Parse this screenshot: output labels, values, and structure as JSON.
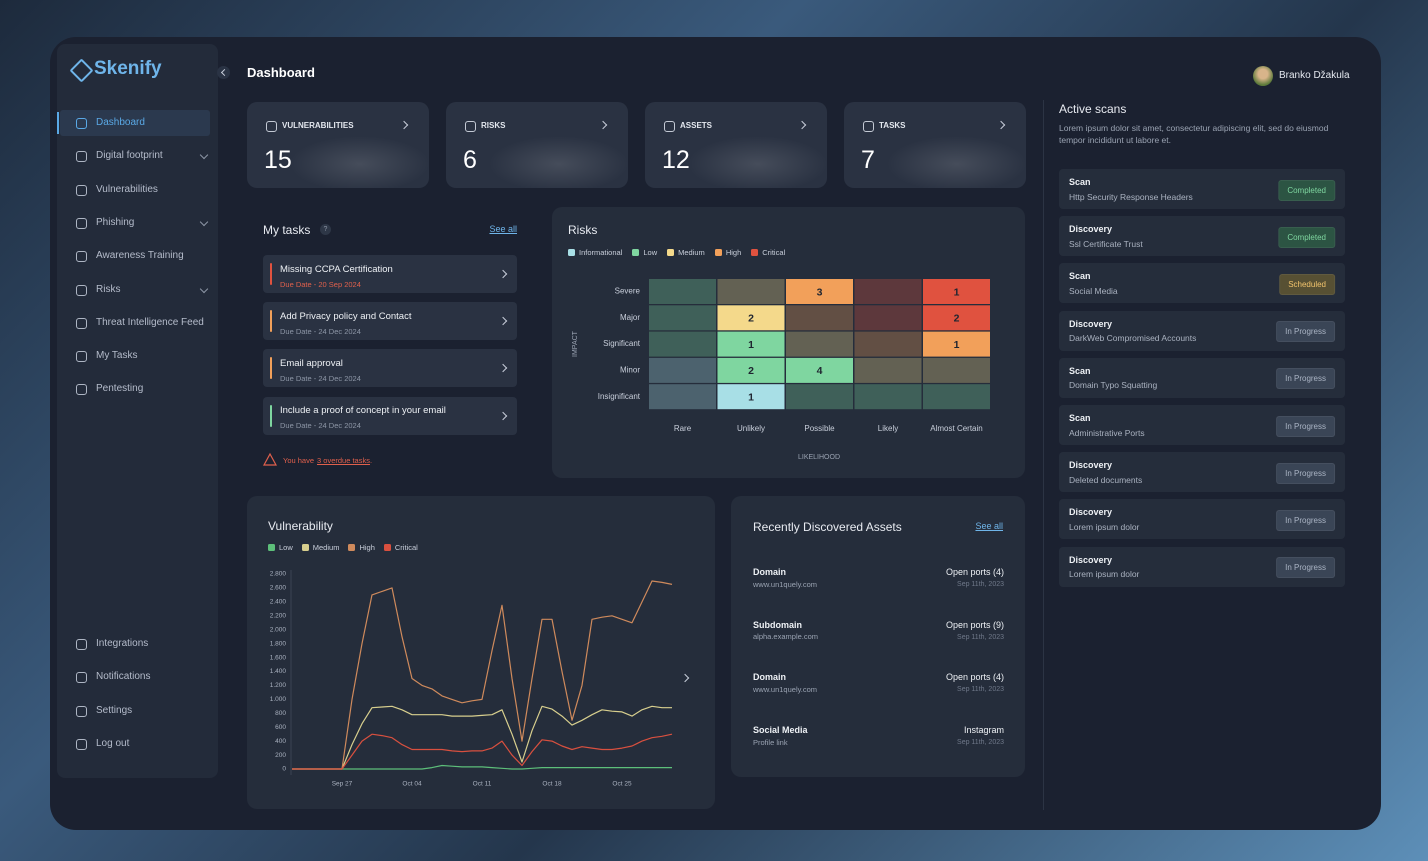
{
  "sidebar": {
    "logo": "Skenify",
    "nav": [
      "Dashboard",
      "Digital footprint",
      "Vulnerabilities",
      "Phishing",
      "Awareness Training",
      "Risks",
      "Threat Intelligence Feed",
      "My Tasks",
      "Pentesting"
    ],
    "bottom_nav": [
      "Integrations",
      "Notifications",
      "Settings",
      "Log out"
    ]
  },
  "header": {
    "title": "Dashboard",
    "user": "Branko Džakula"
  },
  "stats": [
    {
      "label": "VULNERABILITIES",
      "value": 15
    },
    {
      "label": "RISKS",
      "value": 6
    },
    {
      "label": "ASSETS",
      "value": 12
    },
    {
      "label": "TASKS",
      "value": 7
    }
  ],
  "tasks": {
    "title": "My tasks",
    "help": "?",
    "see_all": "See all",
    "items": [
      {
        "title": "Missing CCPA Certification",
        "due": "Due Date - 20 Sep 2024",
        "color": "#e0523f"
      },
      {
        "title": "Add Privacy policy and Contact",
        "due": "Due Date - 24 Dec 2024",
        "color": "#f2a05a"
      },
      {
        "title": "Email approval",
        "due": "Due Date - 24 Dec 2024",
        "color": "#f2a05a"
      },
      {
        "title": "Include a proof of concept in your email",
        "due": "Due Date - 24 Dec 2024",
        "color": "#7fd6a0"
      }
    ],
    "overdue_prefix": "You have",
    "overdue_link": "3 overdue tasks",
    "overdue_suffix": "."
  },
  "risks": {
    "title": "Risks",
    "levels": [
      {
        "name": "Informational",
        "color": "#a8dfe6"
      },
      {
        "name": "Low",
        "color": "#7fd6a0"
      },
      {
        "name": "Medium",
        "color": "#f4d98b"
      },
      {
        "name": "High",
        "color": "#f2a05a"
      },
      {
        "name": "Critical",
        "color": "#e0523f"
      }
    ],
    "rows": [
      "Severe",
      "Major",
      "Significant",
      "Minor",
      "Insignificant"
    ],
    "columns": [
      "Rare",
      "Unlikely",
      "Possible",
      "Likely",
      "Almost Certain"
    ],
    "y_label": "IMPACT",
    "x_label": "LIKELIHOOD",
    "cells": [
      [
        null,
        null,
        3,
        null,
        1
      ],
      [
        null,
        2,
        null,
        null,
        2
      ],
      [
        null,
        1,
        null,
        null,
        1
      ],
      [
        null,
        2,
        4,
        null,
        null
      ],
      [
        null,
        1,
        null,
        null,
        null
      ]
    ],
    "cell_levels": [
      [
        "Low",
        "Medium",
        "High",
        "Critical",
        "Critical"
      ],
      [
        "Low",
        "Medium",
        "High",
        "Critical",
        "Critical"
      ],
      [
        "Low",
        "Low",
        "Medium",
        "High",
        "High"
      ],
      [
        "Informational",
        "Low",
        "Low",
        "Medium",
        "Medium"
      ],
      [
        "Informational",
        "Informational",
        "Low",
        "Low",
        "Low"
      ]
    ]
  },
  "chart_data": {
    "type": "line",
    "title": "Vulnerability",
    "categories": [
      null,
      null,
      null,
      null,
      null,
      "Sep 27",
      null,
      null,
      null,
      null,
      null,
      null,
      "Oct 04",
      null,
      null,
      null,
      null,
      null,
      null,
      "Oct 11",
      null,
      null,
      null,
      null,
      null,
      null,
      "Oct 18",
      null,
      null,
      null,
      null,
      null,
      null,
      "Oct 25",
      null,
      null,
      null,
      null,
      null
    ],
    "series": [
      {
        "name": "Low",
        "color": "#5dbf7a",
        "values": [
          0,
          0,
          0,
          0,
          0,
          0,
          0,
          0,
          0,
          0,
          0,
          0,
          0,
          0,
          20,
          50,
          40,
          30,
          30,
          30,
          20,
          10,
          0,
          0,
          10,
          20,
          20,
          20,
          20,
          20,
          20,
          20,
          20,
          20,
          20,
          20,
          20,
          20,
          20
        ]
      },
      {
        "name": "Medium",
        "color": "#d8cf8e",
        "values": [
          0,
          0,
          0,
          0,
          0,
          0,
          350,
          650,
          880,
          890,
          900,
          850,
          780,
          780,
          780,
          780,
          760,
          760,
          760,
          770,
          780,
          850,
          500,
          100,
          550,
          900,
          860,
          760,
          630,
          700,
          780,
          850,
          830,
          820,
          760,
          850,
          900,
          880,
          880
        ]
      },
      {
        "name": "High",
        "color": "#cf8a5c",
        "values": [
          0,
          0,
          0,
          0,
          0,
          0,
          1000,
          1800,
          2500,
          2550,
          2600,
          1900,
          1300,
          1200,
          1150,
          1050,
          1000,
          950,
          980,
          1000,
          1700,
          2350,
          1300,
          400,
          1300,
          2150,
          2150,
          1400,
          700,
          1200,
          2150,
          2180,
          2200,
          2150,
          2100,
          2400,
          2700,
          2680,
          2650
        ]
      },
      {
        "name": "Critical",
        "color": "#d9503f",
        "values": [
          0,
          0,
          0,
          0,
          0,
          0,
          200,
          400,
          500,
          480,
          450,
          350,
          280,
          280,
          280,
          280,
          260,
          250,
          260,
          260,
          300,
          400,
          200,
          50,
          250,
          420,
          400,
          330,
          280,
          320,
          300,
          280,
          280,
          300,
          330,
          400,
          450,
          470,
          500
        ]
      }
    ],
    "ylim": [
      0,
      2800
    ],
    "yticks": [
      0,
      200,
      400,
      600,
      800,
      {
        "value": 1000,
        "label": "1.000"
      },
      {
        "value": 1200,
        "label": "1.200"
      },
      {
        "value": 1400,
        "label": "1.400"
      },
      {
        "value": 1600,
        "label": "1.600"
      },
      {
        "value": 1800,
        "label": "1.800"
      },
      {
        "value": 2000,
        "label": "2.000"
      },
      {
        "value": 2200,
        "label": "2.200"
      },
      {
        "value": 2400,
        "label": "2.400"
      },
      {
        "value": 2600,
        "label": "2.600"
      },
      {
        "value": 2800,
        "label": "2.800"
      }
    ],
    "grid": false
  },
  "assets": {
    "title": "Recently Discovered Assets",
    "see_all": "See all",
    "items": [
      {
        "type": "Domain",
        "name": "www.un1quely.com",
        "detail": "Open ports (4)",
        "date": "Sep 11th, 2023"
      },
      {
        "type": "Subdomain",
        "name": "alpha.example.com",
        "detail": "Open ports (9)",
        "date": "Sep 11th, 2023"
      },
      {
        "type": "Domain",
        "name": "www.un1quely.com",
        "detail": "Open ports (4)",
        "date": "Sep 11th, 2023"
      },
      {
        "type": "Social Media",
        "name": "Profile link",
        "detail": "Instagram",
        "date": "Sep 11th, 2023"
      }
    ]
  },
  "active_scans": {
    "title": "Active scans",
    "description": "Lorem ipsum dolor sit amet, consectetur adipiscing elit, sed do eiusmod tempor incididunt ut labore et.",
    "items": [
      {
        "type": "Scan",
        "name": "Http Security Response Headers",
        "status": "Completed",
        "status_color": "#7fd6a0",
        "status_background": "#2c5443"
      },
      {
        "type": "Discovery",
        "name": "Ssl Certificate Trust",
        "status": "Completed",
        "status_color": "#7fd6a0",
        "status_background": "#2c5443"
      },
      {
        "type": "Scan",
        "name": "Social Media",
        "status": "Scheduled",
        "status_color": "#f2c46d",
        "status_background": "#575033"
      },
      {
        "type": "Discovery",
        "name": "DarkWeb Compromised Accounts",
        "status": "In Progress",
        "status_color": "#aab4c4",
        "status_background": "#3a4556"
      },
      {
        "type": "Scan",
        "name": "Domain Typo Squatting",
        "status": "In Progress",
        "status_color": "#aab4c4",
        "status_background": "#3a4556"
      },
      {
        "type": "Scan",
        "name": "Administrative Ports",
        "status": "In Progress",
        "status_color": "#aab4c4",
        "status_background": "#3a4556"
      },
      {
        "type": "Discovery",
        "name": "Deleted documents",
        "status": "In Progress",
        "status_color": "#aab4c4",
        "status_background": "#3a4556"
      },
      {
        "type": "Discovery",
        "name": "Lorem ipsum dolor",
        "status": "In Progress",
        "status_color": "#aab4c4",
        "status_background": "#3a4556"
      },
      {
        "type": "Discovery",
        "name": "Lorem ipsum dolor",
        "status": "In Progress",
        "status_color": "#aab4c4",
        "status_background": "#3a4556"
      }
    ]
  }
}
